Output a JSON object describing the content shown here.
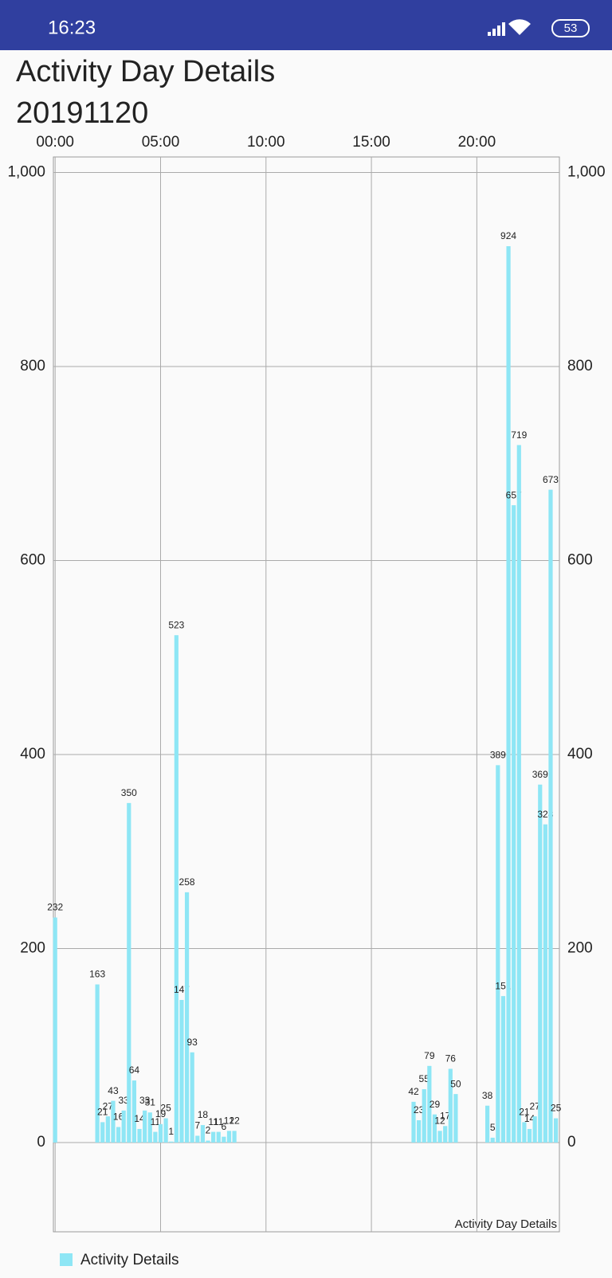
{
  "status_bar": {
    "time": "16:23",
    "battery": "53"
  },
  "chart_data": {
    "type": "bar",
    "title": "Activity Day Details",
    "subtitle": "20191120",
    "description": "Activity Day Details",
    "color": "#8ee6f5",
    "grid": true,
    "legend": "bottom-left",
    "x": [
      0,
      120,
      135,
      150,
      165,
      180,
      195,
      210,
      225,
      240,
      255,
      270,
      285,
      300,
      315,
      330,
      345,
      360,
      375,
      390,
      405,
      420,
      435,
      450,
      465,
      480,
      495,
      510,
      1020,
      1035,
      1050,
      1065,
      1080,
      1095,
      1110,
      1125,
      1140,
      1230,
      1245,
      1260,
      1275,
      1290,
      1305,
      1320,
      1335,
      1350,
      1365,
      1380,
      1395,
      1410,
      1425
    ],
    "series": [
      {
        "name": "Activity Details",
        "color": "#8ee6f5",
        "values": [
          232,
          163,
          21,
          27,
          43,
          16,
          33,
          350,
          64,
          14,
          33,
          31,
          11,
          19,
          25,
          1,
          523,
          147,
          258,
          93,
          7,
          18,
          2,
          11,
          11,
          6,
          12,
          12,
          42,
          23,
          55,
          79,
          29,
          12,
          17,
          76,
          50,
          38,
          5,
          389,
          151,
          924,
          657,
          719,
          21,
          14,
          27,
          369,
          328,
          673,
          25
        ]
      }
    ],
    "xlim": [
      -5,
      1435
    ],
    "xticks": [
      {
        "value": 0,
        "label": "00:00"
      },
      {
        "value": 300,
        "label": "05:00"
      },
      {
        "value": 600,
        "label": "10:00"
      },
      {
        "value": 900,
        "label": "15:00"
      },
      {
        "value": 1200,
        "label": "20:00"
      }
    ],
    "ylim": [
      -92,
      1016
    ],
    "yticks": [
      0,
      200,
      400,
      600,
      800,
      {
        "value": 1000,
        "label": "1,000"
      }
    ],
    "y2lim": [
      -92,
      1016
    ],
    "y2ticks": [
      0,
      200,
      400,
      600,
      800,
      {
        "value": 1000,
        "label": "1,000"
      }
    ]
  }
}
